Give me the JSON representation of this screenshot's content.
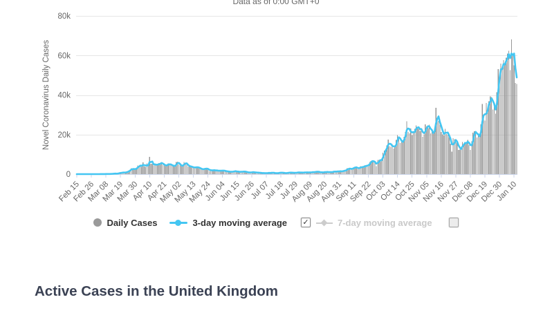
{
  "header": {
    "data_as_of": "Data as of 0:00 GMT+0"
  },
  "footer": {
    "title": "Active Cases in the United Kingdom"
  },
  "legend": {
    "daily_cases": "Daily Cases",
    "ma3": "3-day moving average",
    "ma7": "7-day moving average",
    "ma3_checked": true,
    "ma7_checked": false,
    "check_glyph": "✓"
  },
  "colors": {
    "bar": "#979797",
    "ma3_line": "#44c6f2",
    "ma7_line": "#cccccc",
    "grid": "#e6e6e6",
    "axis_line": "#ccd6eb",
    "axis_text": "#666666",
    "heading": "#3b4254"
  },
  "chart_data": {
    "type": "bar",
    "title": "Data as of 0:00 GMT+0",
    "xlabel": "",
    "ylabel": "Novel Coronavirus Daily Cases",
    "ylim": [
      0,
      80000
    ],
    "grid": true,
    "legend_position": "bottom",
    "start_date": "2020-02-15",
    "cadence": "daily",
    "x_tick_every": 11,
    "x_tick_labels": [
      "Feb 15",
      "Feb 26",
      "Mar 08",
      "Mar 19",
      "Mar 30",
      "Apr 10",
      "Apr 21",
      "May 02",
      "May 13",
      "May 24",
      "Jun 04",
      "Jun 15",
      "Jun 26",
      "Jul 07",
      "Jul 18",
      "Jul 29",
      "Aug 09",
      "Aug 20",
      "Aug 31",
      "Sep 11",
      "Sep 22",
      "Oct 03",
      "Oct 14",
      "Oct 25",
      "Nov 05",
      "Nov 16",
      "Nov 27",
      "Dec 08",
      "Dec 19",
      "Dec 30",
      "Jan 10"
    ],
    "y_ticks": [
      {
        "value": 0,
        "label": "0"
      },
      {
        "value": 20000,
        "label": "20k"
      },
      {
        "value": 40000,
        "label": "40k"
      },
      {
        "value": 60000,
        "label": "60k"
      },
      {
        "value": 80000,
        "label": "80k"
      }
    ],
    "series": [
      {
        "name": "Daily Cases",
        "type": "bar",
        "color": "#979797",
        "values": [
          0,
          0,
          0,
          0,
          0,
          1,
          0,
          0,
          0,
          0,
          0,
          4,
          3,
          2,
          10,
          12,
          13,
          15,
          34,
          29,
          46,
          46,
          67,
          48,
          54,
          83,
          134,
          208,
          264,
          330,
          152,
          407,
          680,
          647,
          714,
          1035,
          665,
          967,
          1427,
          1452,
          2129,
          2885,
          2546,
          2433,
          2619,
          3009,
          4324,
          4244,
          4450,
          3735,
          5903,
          3802,
          3634,
          5491,
          4344,
          8681,
          5195,
          5288,
          4342,
          5252,
          4603,
          4617,
          5599,
          5525,
          5850,
          4676,
          4301,
          4451,
          4583,
          5386,
          4913,
          4463,
          4310,
          3996,
          4076,
          6032,
          6201,
          4806,
          4339,
          3985,
          4406,
          6111,
          5614,
          4649,
          3896,
          3923,
          3877,
          3403,
          3242,
          3446,
          3560,
          3451,
          3142,
          2684,
          2412,
          2472,
          2615,
          2959,
          2665,
          2405,
          1625,
          2004,
          2013,
          1887,
          2095,
          1604,
          1936,
          1570,
          1653,
          1871,
          1805,
          1650,
          1557,
          1326,
          1205,
          1387,
          1003,
          1266,
          1541,
          1425,
          1514,
          1056,
          1279,
          1115,
          1218,
          1346,
          1295,
          1221,
          958,
          874,
          653,
          1118,
          1006,
          890,
          901,
          815,
          689,
          829,
          576,
          544,
          516,
          624,
          352,
          581,
          630,
          642,
          512,
          820,
          650,
          530,
          398,
          538,
          642,
          687,
          827,
          726,
          580,
          445,
          560,
          763,
          768,
          767,
          747,
          685,
          581,
          763,
          846,
          880,
          771,
          743,
          938,
          670,
          892,
          950,
          871,
          758,
          1062,
          816,
          1148,
          1009,
          1129,
          1441,
          1012,
          1040,
          713,
          1089,
          812,
          1182,
          1033,
          1108,
          1041,
          853,
          1184,
          1048,
          1522,
          1276,
          1108,
          1715,
          1406,
          1295,
          1508,
          1735,
          1940,
          1813,
          2988,
          2948,
          2420,
          2659,
          2919,
          3539,
          3497,
          3330,
          2621,
          3105,
          3991,
          3395,
          3539,
          4322,
          4422,
          3899,
          4926,
          6178,
          6634,
          6874,
          6042,
          5693,
          4044,
          7143,
          7108,
          6914,
          6968,
          10870,
          11825,
          12594,
          14542,
          17540,
          14162,
          13864,
          15165,
          12872,
          13972,
          17234,
          19724,
          18980,
          15650,
          16171,
          16982,
          18804,
          21331,
          26688,
          21242,
          20530,
          23012,
          19790,
          20890,
          22885,
          24701,
          23065,
          23254,
          21915,
          23254,
          18950,
          20018,
          25177,
          24138,
          23287,
          24957,
          20572,
          21350,
          20412,
          22950,
          33470,
          27301,
          26860,
          24962,
          21363,
          20051,
          19609,
          22915,
          20252,
          19875,
          18662,
          15450,
          11299,
          18213,
          17555,
          16022,
          15871,
          12155,
          12330,
          13430,
          16170,
          14879,
          16298,
          15539,
          17272,
          14718,
          12282,
          16578,
          20964,
          21672,
          21502,
          18447,
          20263,
          18450,
          25161,
          35383,
          28507,
          27052,
          35928,
          33364,
          36804,
          39237,
          39036,
          32725,
          34693,
          30501,
          41385,
          53135,
          50023,
          55892,
          53285,
          57725,
          54990,
          58784,
          60916,
          62322,
          52618,
          68053,
          59937,
          54940,
          46169,
          45533
        ]
      },
      {
        "name": "3-day moving average",
        "type": "line",
        "derived": "moving_average",
        "window": 3,
        "color": "#44c6f2",
        "visible": true
      },
      {
        "name": "7-day moving average",
        "type": "line",
        "derived": "moving_average",
        "window": 7,
        "color": "#cccccc",
        "visible": false
      }
    ]
  }
}
